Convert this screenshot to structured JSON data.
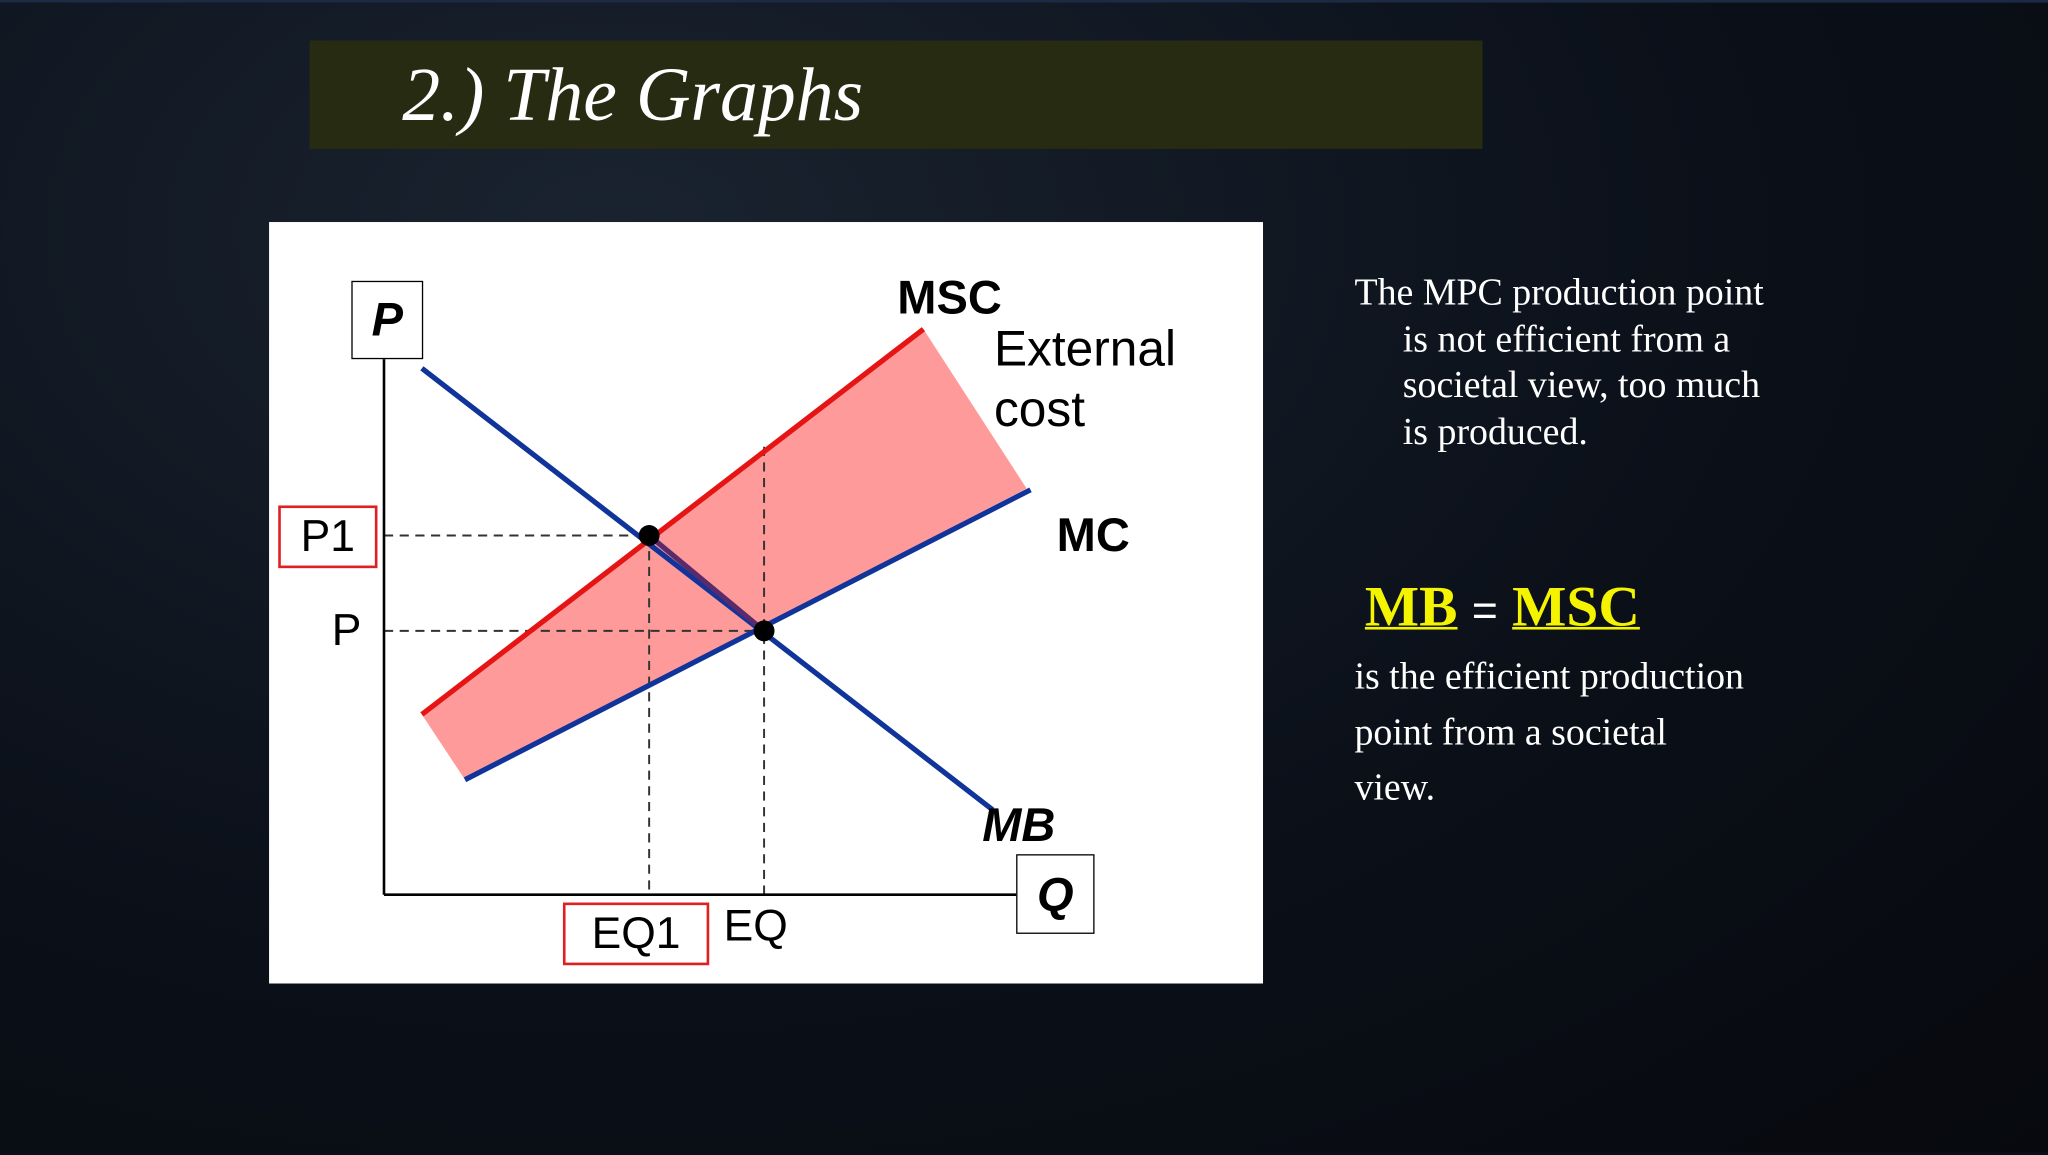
{
  "title": "2.) The Graphs",
  "diagram": {
    "axis_y": "P",
    "axis_x": "Q",
    "curves": {
      "msc": "MSC",
      "mc": "MC",
      "mb": "MB"
    },
    "annotation": "External cost",
    "price_labels": [
      "P1",
      "P"
    ],
    "quantity_labels": [
      "EQ1",
      "EQ"
    ]
  },
  "text": {
    "paragraph": "The MPC production point is not efficient from a societal view, too much is produced.",
    "equation": {
      "left": "MB",
      "op": "=",
      "right": "MSC"
    },
    "caption": "is the efficient production point from a societal view."
  }
}
